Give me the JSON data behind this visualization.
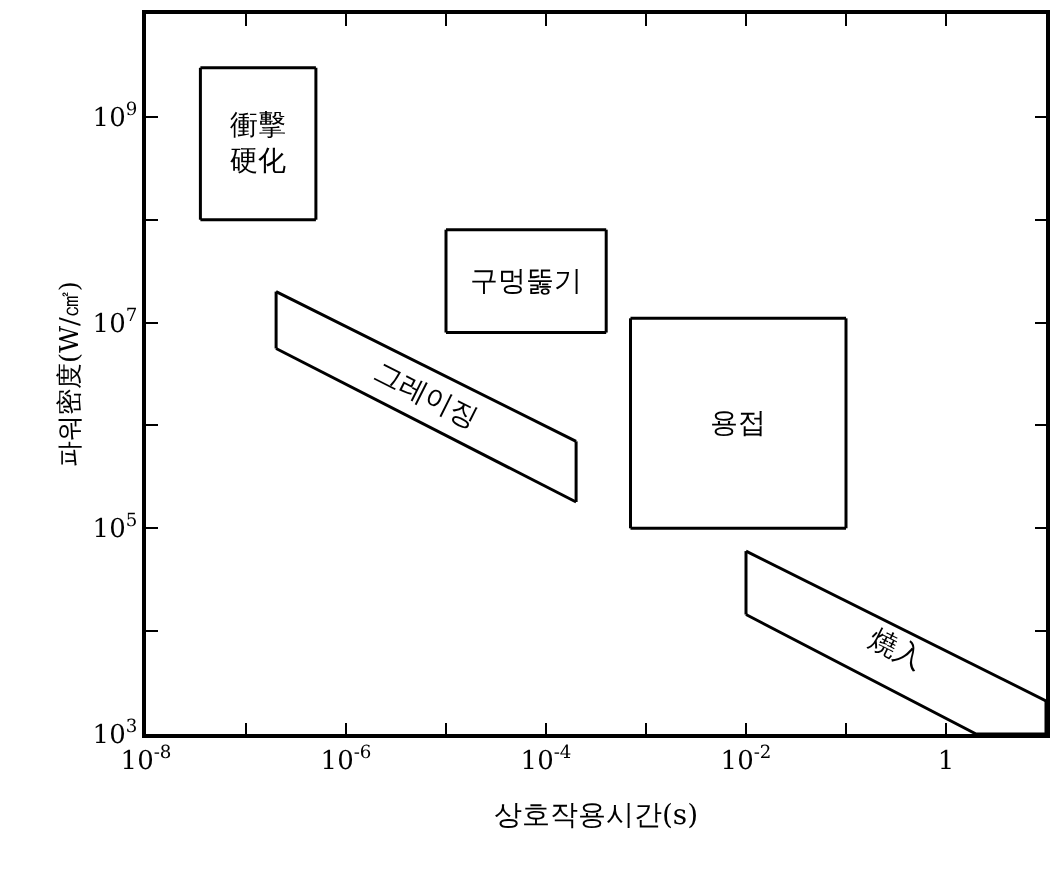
{
  "chart_data": {
    "type": "line",
    "xlabel": "상호작용시간(s)",
    "ylabel": "파워密度(W/㎠)",
    "log": "xy",
    "marker": "none",
    "line_style": "solid",
    "xlim": [
      1e-08,
      10
    ],
    "ylim": [
      1000,
      10000000000.0
    ],
    "xticks": [
      {
        "value": 1e-08,
        "label": "10$^{-8}$"
      },
      {
        "value": 1e-07,
        "label": null
      },
      {
        "value": 1e-06,
        "label": "10$^{-6}$"
      },
      {
        "value": 1e-05,
        "label": null
      },
      {
        "value": 0.0001,
        "label": "10$^{-4}$"
      },
      {
        "value": 0.001,
        "label": null
      },
      {
        "value": 0.01,
        "label": "10$^{-2}$"
      },
      {
        "value": 0.1,
        "label": null
      },
      1
    ],
    "yticks": [
      {
        "value": 1000,
        "label": "10$^{3}$"
      },
      {
        "value": 10000,
        "label": null
      },
      {
        "value": 100000,
        "label": "10$^{5}$"
      },
      {
        "value": 1000000,
        "label": null
      },
      {
        "value": 10000000,
        "label": "10$^{7}$"
      },
      {
        "value": 100000000,
        "label": null
      },
      {
        "value": 1000000000,
        "label": "10$^{9}$"
      }
    ],
    "series": [
      {
        "color": "#000000",
        "x": [
          3.5e-08,
          5e-07
        ],
        "values": [
          3000000000.0,
          3000000000.0
        ]
      },
      {
        "color": "#000000",
        "x": [
          3.5e-08,
          5e-07
        ],
        "values": [
          100000000.0,
          100000000.0
        ]
      },
      {
        "color": "#000000",
        "x": [
          3.5e-08,
          3.5e-08
        ],
        "values": [
          3000000000.0,
          100000000.0
        ]
      },
      {
        "color": "#000000",
        "x": [
          5e-07,
          5e-07
        ],
        "values": [
          3000000000.0,
          100000000.0
        ]
      },
      {
        "color": "#000000",
        "x": [
          1e-05,
          0.0004
        ],
        "values": [
          80000000.0,
          80000000.0
        ]
      },
      {
        "color": "#000000",
        "x": [
          1e-05,
          0.0004
        ],
        "values": [
          8000000.0,
          8000000.0
        ]
      },
      {
        "color": "#000000",
        "x": [
          1e-05,
          1e-05
        ],
        "values": [
          80000000.0,
          8000000.0
        ]
      },
      {
        "color": "#000000",
        "x": [
          0.0004,
          0.0004
        ],
        "values": [
          80000000.0,
          8000000.0
        ]
      },
      {
        "color": "#000000",
        "x": [
          2e-07,
          0.0002
        ],
        "values": [
          20000000.0,
          700000.0
        ]
      },
      {
        "color": "#000000",
        "x": [
          2e-07,
          0.0002
        ],
        "values": [
          5600000.0,
          180000.0
        ]
      },
      {
        "color": "#000000",
        "x": [
          2e-07,
          2e-07
        ],
        "values": [
          20000000.0,
          5600000.0
        ]
      },
      {
        "color": "#000000",
        "x": [
          0.0002,
          0.0002
        ],
        "values": [
          700000.0,
          180000.0
        ]
      },
      {
        "color": "#000000",
        "x": [
          0.0007,
          0.1
        ],
        "values": [
          11000000.0,
          11000000.0
        ]
      },
      {
        "color": "#000000",
        "x": [
          0.0007,
          0.1
        ],
        "values": [
          100000.0,
          100000.0
        ]
      },
      {
        "color": "#000000",
        "x": [
          0.0007,
          0.0007
        ],
        "values": [
          11000000.0,
          100000.0
        ]
      },
      {
        "color": "#000000",
        "x": [
          0.1,
          0.1
        ],
        "values": [
          11000000.0,
          100000.0
        ]
      },
      {
        "color": "#000000",
        "x": [
          0.01,
          10
        ],
        "values": [
          60000.0,
          2100
        ]
      },
      {
        "color": "#000000",
        "x": [
          0.01,
          2,
          10
        ],
        "values": [
          14500.0,
          1000,
          1000
        ]
      },
      {
        "color": "#000000",
        "x": [
          0.01,
          0.01
        ],
        "values": [
          60000.0,
          14500.0
        ]
      },
      {
        "color": "#000000",
        "x": [
          10,
          10
        ],
        "values": [
          2100,
          1000
        ]
      }
    ],
    "annotations": [
      "衝擊硬化",
      "구멍뚫기",
      "그레이징",
      "용접",
      "燒入"
    ]
  }
}
